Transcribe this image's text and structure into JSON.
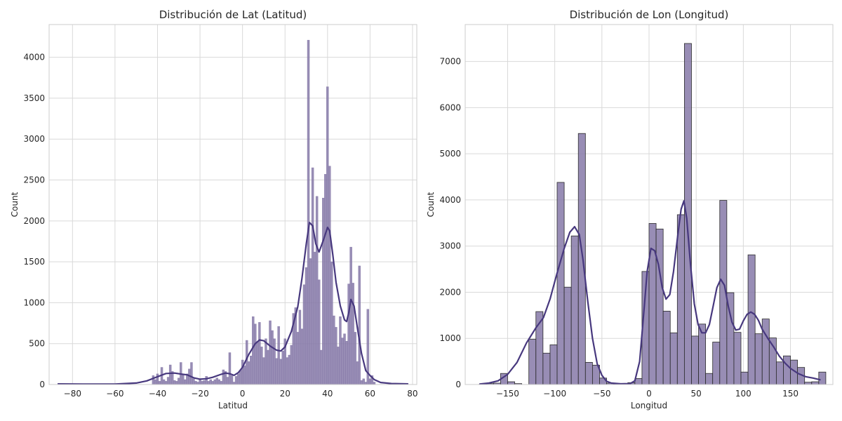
{
  "chart_data": [
    {
      "type": "histogram",
      "title": "Distribución de Lat (Latitud)",
      "xlabel": "Latitud",
      "ylabel": "Count",
      "xlim": [
        -91,
        82
      ],
      "ylim": [
        0,
        4400
      ],
      "xticks": [
        -80,
        -60,
        -40,
        -20,
        0,
        20,
        40,
        60,
        80
      ],
      "yticks": [
        0,
        500,
        1000,
        1500,
        2000,
        2500,
        3000,
        3500,
        4000
      ],
      "grid": true,
      "bar_color": "#8679a8",
      "line_color": "#47387e",
      "bin_width": 1,
      "bars": [
        {
          "x": -42,
          "y": 110
        },
        {
          "x": -41,
          "y": 60
        },
        {
          "x": -40,
          "y": 130
        },
        {
          "x": -39,
          "y": 40
        },
        {
          "x": -38,
          "y": 210
        },
        {
          "x": -37,
          "y": 60
        },
        {
          "x": -36,
          "y": 40
        },
        {
          "x": -35,
          "y": 90
        },
        {
          "x": -34,
          "y": 240
        },
        {
          "x": -33,
          "y": 160
        },
        {
          "x": -32,
          "y": 50
        },
        {
          "x": -31,
          "y": 40
        },
        {
          "x": -30,
          "y": 80
        },
        {
          "x": -29,
          "y": 270
        },
        {
          "x": -28,
          "y": 130
        },
        {
          "x": -27,
          "y": 60
        },
        {
          "x": -26,
          "y": 130
        },
        {
          "x": -25,
          "y": 190
        },
        {
          "x": -24,
          "y": 270
        },
        {
          "x": -23,
          "y": 70
        },
        {
          "x": -22,
          "y": 40
        },
        {
          "x": -21,
          "y": 30
        },
        {
          "x": -20,
          "y": 60
        },
        {
          "x": -19,
          "y": 40
        },
        {
          "x": -18,
          "y": 50
        },
        {
          "x": -17,
          "y": 100
        },
        {
          "x": -16,
          "y": 40
        },
        {
          "x": -15,
          "y": 60
        },
        {
          "x": -14,
          "y": 40
        },
        {
          "x": -13,
          "y": 60
        },
        {
          "x": -12,
          "y": 80
        },
        {
          "x": -11,
          "y": 60
        },
        {
          "x": -10,
          "y": 40
        },
        {
          "x": -9,
          "y": 180
        },
        {
          "x": -8,
          "y": 160
        },
        {
          "x": -7,
          "y": 90
        },
        {
          "x": -6,
          "y": 390
        },
        {
          "x": -5,
          "y": 110
        },
        {
          "x": -4,
          "y": 30
        },
        {
          "x": -3,
          "y": 100
        },
        {
          "x": -2,
          "y": 130
        },
        {
          "x": -1,
          "y": 170
        },
        {
          "x": 0,
          "y": 300
        },
        {
          "x": 1,
          "y": 230
        },
        {
          "x": 2,
          "y": 540
        },
        {
          "x": 3,
          "y": 280
        },
        {
          "x": 4,
          "y": 350
        },
        {
          "x": 5,
          "y": 830
        },
        {
          "x": 6,
          "y": 740
        },
        {
          "x": 7,
          "y": 520
        },
        {
          "x": 8,
          "y": 760
        },
        {
          "x": 9,
          "y": 460
        },
        {
          "x": 10,
          "y": 330
        },
        {
          "x": 11,
          "y": 560
        },
        {
          "x": 12,
          "y": 420
        },
        {
          "x": 13,
          "y": 780
        },
        {
          "x": 14,
          "y": 660
        },
        {
          "x": 15,
          "y": 560
        },
        {
          "x": 16,
          "y": 320
        },
        {
          "x": 17,
          "y": 710
        },
        {
          "x": 18,
          "y": 310
        },
        {
          "x": 19,
          "y": 410
        },
        {
          "x": 20,
          "y": 560
        },
        {
          "x": 21,
          "y": 330
        },
        {
          "x": 22,
          "y": 360
        },
        {
          "x": 23,
          "y": 480
        },
        {
          "x": 24,
          "y": 870
        },
        {
          "x": 25,
          "y": 940
        },
        {
          "x": 26,
          "y": 640
        },
        {
          "x": 27,
          "y": 910
        },
        {
          "x": 28,
          "y": 680
        },
        {
          "x": 29,
          "y": 1220
        },
        {
          "x": 30,
          "y": 1430
        },
        {
          "x": 31,
          "y": 4210
        },
        {
          "x": 32,
          "y": 1540
        },
        {
          "x": 33,
          "y": 2650
        },
        {
          "x": 34,
          "y": 1620
        },
        {
          "x": 35,
          "y": 2300
        },
        {
          "x": 36,
          "y": 1280
        },
        {
          "x": 37,
          "y": 420
        },
        {
          "x": 38,
          "y": 2280
        },
        {
          "x": 39,
          "y": 2570
        },
        {
          "x": 40,
          "y": 3640
        },
        {
          "x": 41,
          "y": 2670
        },
        {
          "x": 42,
          "y": 1500
        },
        {
          "x": 43,
          "y": 840
        },
        {
          "x": 44,
          "y": 700
        },
        {
          "x": 45,
          "y": 460
        },
        {
          "x": 46,
          "y": 830
        },
        {
          "x": 47,
          "y": 570
        },
        {
          "x": 48,
          "y": 620
        },
        {
          "x": 49,
          "y": 530
        },
        {
          "x": 50,
          "y": 1230
        },
        {
          "x": 51,
          "y": 1680
        },
        {
          "x": 52,
          "y": 1240
        },
        {
          "x": 53,
          "y": 640
        },
        {
          "x": 54,
          "y": 280
        },
        {
          "x": 55,
          "y": 1450
        },
        {
          "x": 56,
          "y": 50
        },
        {
          "x": 57,
          "y": 70
        },
        {
          "x": 58,
          "y": 30
        },
        {
          "x": 59,
          "y": 920
        },
        {
          "x": 60,
          "y": 70
        },
        {
          "x": 61,
          "y": 110
        },
        {
          "x": 62,
          "y": 30
        }
      ],
      "kde": [
        [
          -87,
          8
        ],
        [
          -75,
          5
        ],
        [
          -60,
          5
        ],
        [
          -50,
          18
        ],
        [
          -45,
          45
        ],
        [
          -40,
          95
        ],
        [
          -36,
          135
        ],
        [
          -32,
          140
        ],
        [
          -29,
          128
        ],
        [
          -26,
          118
        ],
        [
          -23,
          82
        ],
        [
          -20,
          65
        ],
        [
          -17,
          70
        ],
        [
          -14,
          88
        ],
        [
          -10,
          125
        ],
        [
          -8,
          140
        ],
        [
          -6,
          132
        ],
        [
          -4,
          112
        ],
        [
          -2,
          145
        ],
        [
          0,
          210
        ],
        [
          3,
          370
        ],
        [
          6,
          500
        ],
        [
          8,
          545
        ],
        [
          10,
          535
        ],
        [
          13,
          470
        ],
        [
          16,
          420
        ],
        [
          18,
          410
        ],
        [
          20,
          460
        ],
        [
          23,
          650
        ],
        [
          26,
          950
        ],
        [
          28,
          1300
        ],
        [
          30,
          1720
        ],
        [
          31.5,
          1980
        ],
        [
          33,
          1940
        ],
        [
          34.5,
          1720
        ],
        [
          36,
          1620
        ],
        [
          38,
          1760
        ],
        [
          40,
          1920
        ],
        [
          41,
          1880
        ],
        [
          42.5,
          1580
        ],
        [
          44,
          1250
        ],
        [
          46,
          960
        ],
        [
          48,
          790
        ],
        [
          49,
          770
        ],
        [
          50,
          880
        ],
        [
          51,
          1040
        ],
        [
          52.5,
          960
        ],
        [
          54,
          700
        ],
        [
          56,
          380
        ],
        [
          58,
          170
        ],
        [
          60,
          110
        ],
        [
          62,
          60
        ],
        [
          65,
          25
        ],
        [
          70,
          12
        ],
        [
          78,
          8
        ]
      ]
    },
    {
      "type": "histogram",
      "title": "Distribución de Lon (Longitud)",
      "xlabel": "Longitud",
      "ylabel": "Count",
      "xlim": [
        -195,
        195
      ],
      "ylim": [
        0,
        7800
      ],
      "xticks": [
        -150,
        -100,
        -50,
        0,
        50,
        100,
        150
      ],
      "yticks": [
        0,
        1000,
        2000,
        3000,
        4000,
        5000,
        6000,
        7000
      ],
      "grid": true,
      "bar_color": "#8679a8",
      "line_color": "#47387e",
      "bin_width": 7.5,
      "bars": [
        {
          "x": -176.25,
          "y": 10
        },
        {
          "x": -168.75,
          "y": 20
        },
        {
          "x": -161.25,
          "y": 30
        },
        {
          "x": -153.75,
          "y": 240
        },
        {
          "x": -146.25,
          "y": 60
        },
        {
          "x": -138.75,
          "y": 20
        },
        {
          "x": -131.25,
          "y": 0
        },
        {
          "x": -123.75,
          "y": 980
        },
        {
          "x": -116.25,
          "y": 1580
        },
        {
          "x": -108.75,
          "y": 680
        },
        {
          "x": -101.25,
          "y": 860
        },
        {
          "x": -93.75,
          "y": 4380
        },
        {
          "x": -86.25,
          "y": 2110
        },
        {
          "x": -78.75,
          "y": 3220
        },
        {
          "x": -71.25,
          "y": 5440
        },
        {
          "x": -63.75,
          "y": 480
        },
        {
          "x": -56.25,
          "y": 420
        },
        {
          "x": -48.75,
          "y": 140
        },
        {
          "x": -41.25,
          "y": 30
        },
        {
          "x": -33.75,
          "y": 10
        },
        {
          "x": -26.25,
          "y": 0
        },
        {
          "x": -18.75,
          "y": 40
        },
        {
          "x": -11.25,
          "y": 130
        },
        {
          "x": -3.75,
          "y": 2450
        },
        {
          "x": 3.75,
          "y": 3490
        },
        {
          "x": 11.25,
          "y": 3370
        },
        {
          "x": 18.75,
          "y": 1590
        },
        {
          "x": 26.25,
          "y": 1120
        },
        {
          "x": 33.75,
          "y": 3680
        },
        {
          "x": 41.25,
          "y": 7390
        },
        {
          "x": 48.75,
          "y": 1050
        },
        {
          "x": 56.25,
          "y": 1310
        },
        {
          "x": 63.75,
          "y": 240
        },
        {
          "x": 71.25,
          "y": 920
        },
        {
          "x": 78.75,
          "y": 3990
        },
        {
          "x": 86.25,
          "y": 1990
        },
        {
          "x": 93.75,
          "y": 1130
        },
        {
          "x": 101.25,
          "y": 270
        },
        {
          "x": 108.75,
          "y": 2810
        },
        {
          "x": 116.25,
          "y": 1100
        },
        {
          "x": 123.75,
          "y": 1420
        },
        {
          "x": 131.25,
          "y": 1010
        },
        {
          "x": 138.75,
          "y": 490
        },
        {
          "x": 146.25,
          "y": 620
        },
        {
          "x": 153.75,
          "y": 530
        },
        {
          "x": 161.25,
          "y": 370
        },
        {
          "x": 168.75,
          "y": 50
        },
        {
          "x": 176.25,
          "y": 60
        },
        {
          "x": 183.75,
          "y": 270
        }
      ],
      "kde": [
        [
          -180,
          10
        ],
        [
          -170,
          30
        ],
        [
          -160,
          80
        ],
        [
          -150,
          220
        ],
        [
          -140,
          480
        ],
        [
          -130,
          900
        ],
        [
          -120,
          1230
        ],
        [
          -112,
          1450
        ],
        [
          -105,
          1850
        ],
        [
          -98,
          2380
        ],
        [
          -90,
          2950
        ],
        [
          -84,
          3300
        ],
        [
          -79,
          3420
        ],
        [
          -74,
          3250
        ],
        [
          -70,
          2700
        ],
        [
          -65,
          1800
        ],
        [
          -60,
          1000
        ],
        [
          -55,
          450
        ],
        [
          -50,
          200
        ],
        [
          -45,
          70
        ],
        [
          -40,
          30
        ],
        [
          -30,
          15
        ],
        [
          -20,
          20
        ],
        [
          -15,
          80
        ],
        [
          -10,
          500
        ],
        [
          -5,
          1700
        ],
        [
          -2,
          2450
        ],
        [
          2,
          2950
        ],
        [
          6,
          2900
        ],
        [
          10,
          2600
        ],
        [
          14,
          2100
        ],
        [
          18,
          1850
        ],
        [
          22,
          1950
        ],
        [
          26,
          2450
        ],
        [
          30,
          3150
        ],
        [
          34,
          3800
        ],
        [
          37,
          3980
        ],
        [
          40,
          3600
        ],
        [
          44,
          2600
        ],
        [
          48,
          1750
        ],
        [
          52,
          1300
        ],
        [
          56,
          1120
        ],
        [
          60,
          1120
        ],
        [
          64,
          1300
        ],
        [
          68,
          1700
        ],
        [
          72,
          2100
        ],
        [
          76,
          2280
        ],
        [
          80,
          2150
        ],
        [
          84,
          1700
        ],
        [
          88,
          1350
        ],
        [
          92,
          1180
        ],
        [
          96,
          1200
        ],
        [
          100,
          1380
        ],
        [
          104,
          1520
        ],
        [
          108,
          1570
        ],
        [
          112,
          1520
        ],
        [
          116,
          1390
        ],
        [
          120,
          1200
        ],
        [
          126,
          1000
        ],
        [
          132,
          820
        ],
        [
          138,
          620
        ],
        [
          144,
          470
        ],
        [
          150,
          350
        ],
        [
          158,
          240
        ],
        [
          166,
          170
        ],
        [
          174,
          140
        ],
        [
          182,
          100
        ]
      ]
    }
  ]
}
